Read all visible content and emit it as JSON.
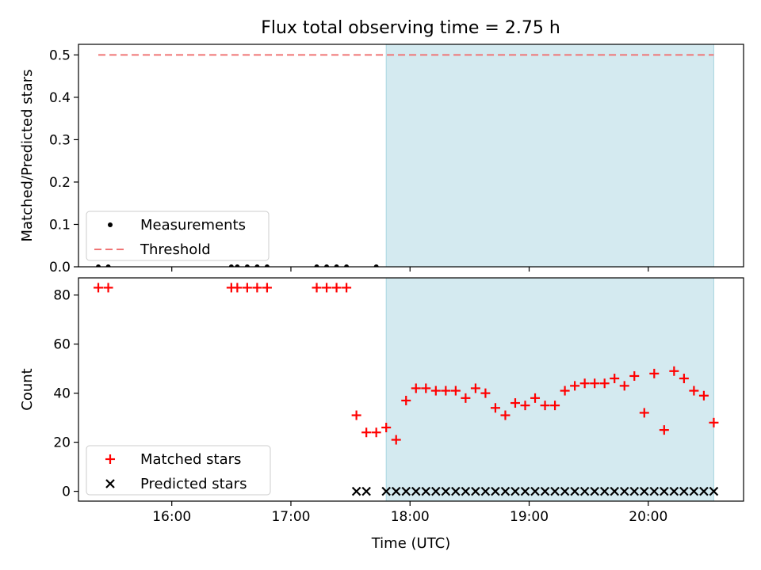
{
  "chart_data": [
    {
      "type": "scatter",
      "title": "Flux total observing time = 2.75 h",
      "xlabel": "",
      "ylabel": "Matched/Predicted stars",
      "x_unit": "time (UTC)",
      "xlim": [
        "15:13",
        "20:48"
      ],
      "ylim": [
        0,
        0.525
      ],
      "yticks": [
        0.0,
        0.1,
        0.2,
        0.3,
        0.4,
        0.5
      ],
      "ytick_labels": [
        "0.0",
        "0.1",
        "0.2",
        "0.3",
        "0.4",
        "0.5"
      ],
      "xticks": [
        "16:00",
        "17:00",
        "18:00",
        "19:00",
        "20:00"
      ],
      "xtick_labels": [
        "",
        "",
        "",
        "",
        ""
      ],
      "shaded_span": {
        "from": "17:48",
        "to": "20:33",
        "color": "#d4eaf0"
      },
      "legend_position": "lower-left",
      "series": [
        {
          "name": "Measurements",
          "marker": "dot",
          "color": "#000000",
          "points": [
            {
              "x": "15:23",
              "y": 0
            },
            {
              "x": "15:28",
              "y": 0
            },
            {
              "x": "16:30",
              "y": 0
            },
            {
              "x": "16:33",
              "y": 0
            },
            {
              "x": "16:38",
              "y": 0
            },
            {
              "x": "16:43",
              "y": 0
            },
            {
              "x": "16:48",
              "y": 0
            },
            {
              "x": "17:13",
              "y": 0
            },
            {
              "x": "17:18",
              "y": 0
            },
            {
              "x": "17:23",
              "y": 0
            },
            {
              "x": "17:28",
              "y": 0
            },
            {
              "x": "17:43",
              "y": 0
            }
          ]
        },
        {
          "name": "Threshold",
          "line_style": "dashed",
          "color": "#f07575",
          "points": [
            {
              "x": "15:23",
              "y": 0.5
            },
            {
              "x": "20:33",
              "y": 0.5
            }
          ]
        }
      ]
    },
    {
      "type": "scatter",
      "title": "",
      "xlabel": "Time (UTC)",
      "ylabel": "Count",
      "xlim": [
        "15:13",
        "20:48"
      ],
      "ylim": [
        -4,
        87
      ],
      "yticks": [
        0,
        20,
        40,
        60,
        80
      ],
      "ytick_labels": [
        "0",
        "20",
        "40",
        "60",
        "80"
      ],
      "xticks": [
        "16:00",
        "17:00",
        "18:00",
        "19:00",
        "20:00"
      ],
      "xtick_labels": [
        "16:00",
        "17:00",
        "18:00",
        "19:00",
        "20:00"
      ],
      "shaded_span": {
        "from": "17:48",
        "to": "20:33",
        "color": "#d4eaf0"
      },
      "legend_position": "lower-left",
      "series": [
        {
          "name": "Matched stars",
          "marker": "plus",
          "color": "#ff0000",
          "points": [
            {
              "x": "15:23",
              "y": 83
            },
            {
              "x": "15:28",
              "y": 83
            },
            {
              "x": "16:30",
              "y": 83
            },
            {
              "x": "16:33",
              "y": 83
            },
            {
              "x": "16:38",
              "y": 83
            },
            {
              "x": "16:43",
              "y": 83
            },
            {
              "x": "16:48",
              "y": 83
            },
            {
              "x": "17:13",
              "y": 83
            },
            {
              "x": "17:18",
              "y": 83
            },
            {
              "x": "17:23",
              "y": 83
            },
            {
              "x": "17:28",
              "y": 83
            },
            {
              "x": "17:33",
              "y": 31
            },
            {
              "x": "17:38",
              "y": 24
            },
            {
              "x": "17:43",
              "y": 24
            },
            {
              "x": "17:48",
              "y": 26
            },
            {
              "x": "17:53",
              "y": 21
            },
            {
              "x": "17:58",
              "y": 37
            },
            {
              "x": "18:03",
              "y": 42
            },
            {
              "x": "18:08",
              "y": 42
            },
            {
              "x": "18:13",
              "y": 41
            },
            {
              "x": "18:18",
              "y": 41
            },
            {
              "x": "18:23",
              "y": 41
            },
            {
              "x": "18:28",
              "y": 38
            },
            {
              "x": "18:33",
              "y": 42
            },
            {
              "x": "18:38",
              "y": 40
            },
            {
              "x": "18:43",
              "y": 34
            },
            {
              "x": "18:48",
              "y": 31
            },
            {
              "x": "18:53",
              "y": 36
            },
            {
              "x": "18:58",
              "y": 35
            },
            {
              "x": "19:03",
              "y": 38
            },
            {
              "x": "19:08",
              "y": 35
            },
            {
              "x": "19:13",
              "y": 35
            },
            {
              "x": "19:18",
              "y": 41
            },
            {
              "x": "19:23",
              "y": 43
            },
            {
              "x": "19:28",
              "y": 44
            },
            {
              "x": "19:33",
              "y": 44
            },
            {
              "x": "19:38",
              "y": 44
            },
            {
              "x": "19:43",
              "y": 46
            },
            {
              "x": "19:48",
              "y": 43
            },
            {
              "x": "19:53",
              "y": 47
            },
            {
              "x": "19:58",
              "y": 32
            },
            {
              "x": "20:03",
              "y": 48
            },
            {
              "x": "20:08",
              "y": 25
            },
            {
              "x": "20:13",
              "y": 49
            },
            {
              "x": "20:18",
              "y": 46
            },
            {
              "x": "20:23",
              "y": 41
            },
            {
              "x": "20:28",
              "y": 39
            },
            {
              "x": "20:33",
              "y": 28
            }
          ]
        },
        {
          "name": "Predicted stars",
          "marker": "x",
          "color": "#000000",
          "points": [
            {
              "x": "17:33",
              "y": 0
            },
            {
              "x": "17:38",
              "y": 0
            },
            {
              "x": "17:48",
              "y": 0
            },
            {
              "x": "17:53",
              "y": 0
            },
            {
              "x": "17:58",
              "y": 0
            },
            {
              "x": "18:03",
              "y": 0
            },
            {
              "x": "18:08",
              "y": 0
            },
            {
              "x": "18:13",
              "y": 0
            },
            {
              "x": "18:18",
              "y": 0
            },
            {
              "x": "18:23",
              "y": 0
            },
            {
              "x": "18:28",
              "y": 0
            },
            {
              "x": "18:33",
              "y": 0
            },
            {
              "x": "18:38",
              "y": 0
            },
            {
              "x": "18:43",
              "y": 0
            },
            {
              "x": "18:48",
              "y": 0
            },
            {
              "x": "18:53",
              "y": 0
            },
            {
              "x": "18:58",
              "y": 0
            },
            {
              "x": "19:03",
              "y": 0
            },
            {
              "x": "19:08",
              "y": 0
            },
            {
              "x": "19:13",
              "y": 0
            },
            {
              "x": "19:18",
              "y": 0
            },
            {
              "x": "19:23",
              "y": 0
            },
            {
              "x": "19:28",
              "y": 0
            },
            {
              "x": "19:33",
              "y": 0
            },
            {
              "x": "19:38",
              "y": 0
            },
            {
              "x": "19:43",
              "y": 0
            },
            {
              "x": "19:48",
              "y": 0
            },
            {
              "x": "19:53",
              "y": 0
            },
            {
              "x": "19:58",
              "y": 0
            },
            {
              "x": "20:03",
              "y": 0
            },
            {
              "x": "20:08",
              "y": 0
            },
            {
              "x": "20:13",
              "y": 0
            },
            {
              "x": "20:18",
              "y": 0
            },
            {
              "x": "20:23",
              "y": 0
            },
            {
              "x": "20:28",
              "y": 0
            },
            {
              "x": "20:33",
              "y": 0
            }
          ]
        }
      ]
    }
  ]
}
